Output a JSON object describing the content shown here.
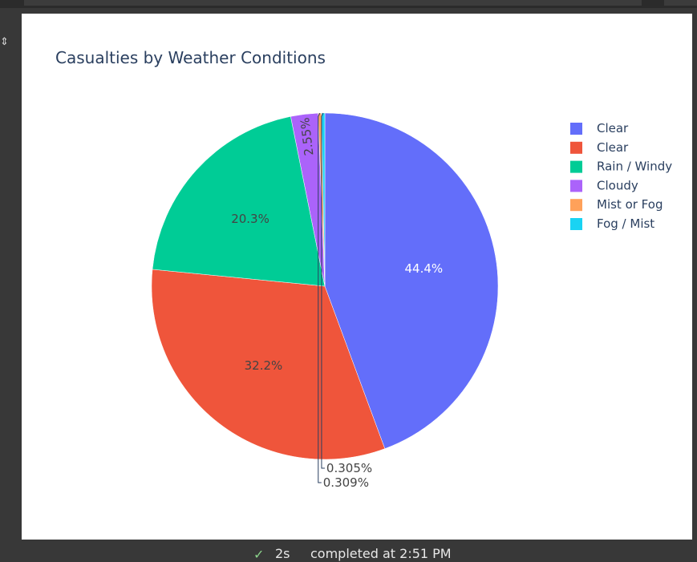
{
  "status": {
    "duration": "2s",
    "completed_text": "completed at 2:51 PM"
  },
  "chart_data": {
    "type": "pie",
    "title": "Casualties by Weather Conditions",
    "labels": [
      "Clear",
      "Clear",
      "Rain / Windy",
      "Cloudy",
      "Mist or Fog",
      "Fog / Mist"
    ],
    "values": [
      44.4,
      32.2,
      20.3,
      2.55,
      0.309,
      0.305
    ],
    "value_labels": [
      "44.4%",
      "32.2%",
      "20.3%",
      "2.55%",
      "0.309%",
      "0.305%"
    ],
    "colors": [
      "#636efa",
      "#EF553B",
      "#00cc96",
      "#ab63fa",
      "#FFA15A",
      "#19d3f3"
    ],
    "label_text_colors": [
      "#ffffff",
      "#444444",
      "#444444",
      "#444444",
      "#444444",
      "#444444"
    ],
    "legend_position": "right",
    "direction": "clockwise",
    "start_angle": "top"
  }
}
